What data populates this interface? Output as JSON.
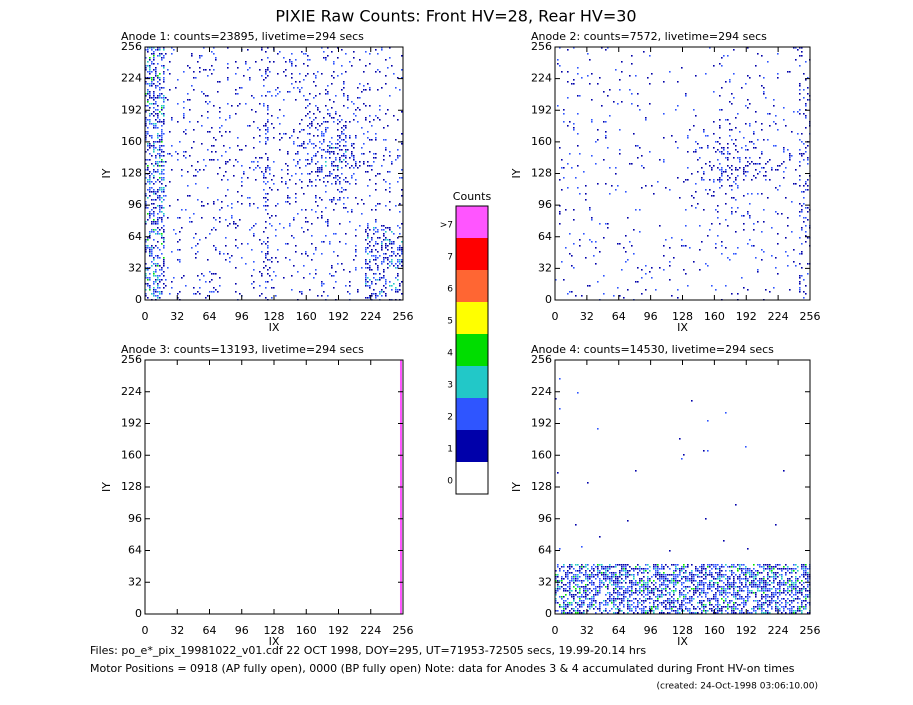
{
  "title": "PIXIE Raw Counts:  Front HV=28, Rear HV=30",
  "chart_data": [
    {
      "type": "heatmap",
      "title": "Anode 1: counts=23895, livetime=294 secs",
      "xlabel": "IX",
      "ylabel": "IY",
      "xlim": [
        0,
        256
      ],
      "ylim": [
        0,
        256
      ],
      "xticks": [
        0,
        32,
        64,
        96,
        128,
        160,
        192,
        224,
        256
      ],
      "yticks": [
        0,
        32,
        64,
        96,
        128,
        160,
        192,
        224,
        256
      ]
    },
    {
      "type": "heatmap",
      "title": "Anode 2: counts=7572, livetime=294 secs",
      "xlabel": "IX",
      "ylabel": "IY",
      "xlim": [
        0,
        256
      ],
      "ylim": [
        0,
        256
      ],
      "xticks": [
        0,
        32,
        64,
        96,
        128,
        160,
        192,
        224,
        256
      ],
      "yticks": [
        0,
        32,
        64,
        96,
        128,
        160,
        192,
        224,
        256
      ]
    },
    {
      "type": "heatmap",
      "title": "Anode 3: counts=13193, livetime=294 secs",
      "xlabel": "IX",
      "ylabel": "IY",
      "xlim": [
        0,
        256
      ],
      "ylim": [
        0,
        256
      ],
      "xticks": [
        0,
        32,
        64,
        96,
        128,
        160,
        192,
        224,
        256
      ],
      "yticks": [
        0,
        32,
        64,
        96,
        128,
        160,
        192,
        224,
        256
      ]
    },
    {
      "type": "heatmap",
      "title": "Anode 4: counts=14530, livetime=294 secs",
      "xlabel": "IX",
      "ylabel": "IY",
      "xlim": [
        0,
        256
      ],
      "ylim": [
        0,
        256
      ],
      "xticks": [
        0,
        32,
        64,
        96,
        128,
        160,
        192,
        224,
        256
      ],
      "yticks": [
        0,
        32,
        64,
        96,
        128,
        160,
        192,
        224,
        256
      ]
    }
  ],
  "colorbar": {
    "title": "Counts",
    "labels": [
      "0",
      "1",
      "2",
      "3",
      "4",
      "5",
      "6",
      "7",
      ">7"
    ],
    "colors": [
      "#ffffff",
      "#0000aa",
      "#2f55ff",
      "#22c8c8",
      "#00dd00",
      "#ffff00",
      "#ff6633",
      "#ff0000",
      "#ff55ff"
    ]
  },
  "footer": {
    "files": "Files: po_e*_pix_19981022_v01.cdf    22 OCT 1998, DOY=295, UT=71953-72505 secs, 19.99-20.14 hrs",
    "motor": "Motor Positions = 0918 (AP fully open), 0000 (BP fully open)    Note: data for Anodes 3 & 4 accumulated during Front HV-on times",
    "created": "(created: 24-Oct-1998 03:06:10.00)"
  }
}
